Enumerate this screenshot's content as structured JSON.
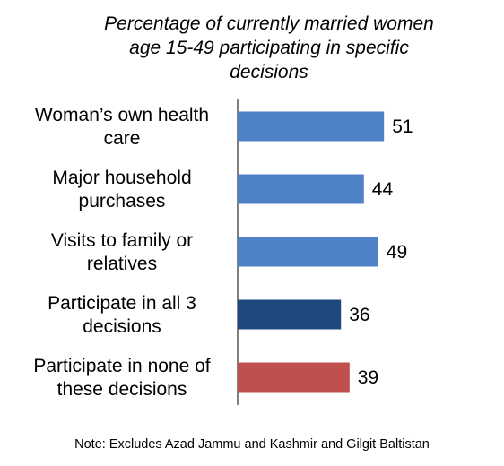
{
  "chart_data": {
    "type": "bar",
    "orientation": "horizontal",
    "title_lines": [
      "Percentage of currently married women",
      "age 15-49 participating in specific",
      "decisions"
    ],
    "categories": [
      [
        "Woman’s own health",
        "care"
      ],
      [
        "Major household",
        "purchases"
      ],
      [
        "Visits to family or",
        "relatives"
      ],
      [
        "Participate in all 3",
        "decisions"
      ],
      [
        "Participate in none of",
        "these decisions"
      ]
    ],
    "values": [
      51,
      44,
      49,
      36,
      39
    ],
    "colors": [
      "#4f81c7",
      "#4f81c7",
      "#4f81c7",
      "#1f497d",
      "#c0504d"
    ],
    "xlim": [
      0,
      100
    ],
    "grid": false,
    "legend": "none",
    "note": "Note: Excludes Azad Jammu and Kashmir and Gilgit Baltistan"
  }
}
